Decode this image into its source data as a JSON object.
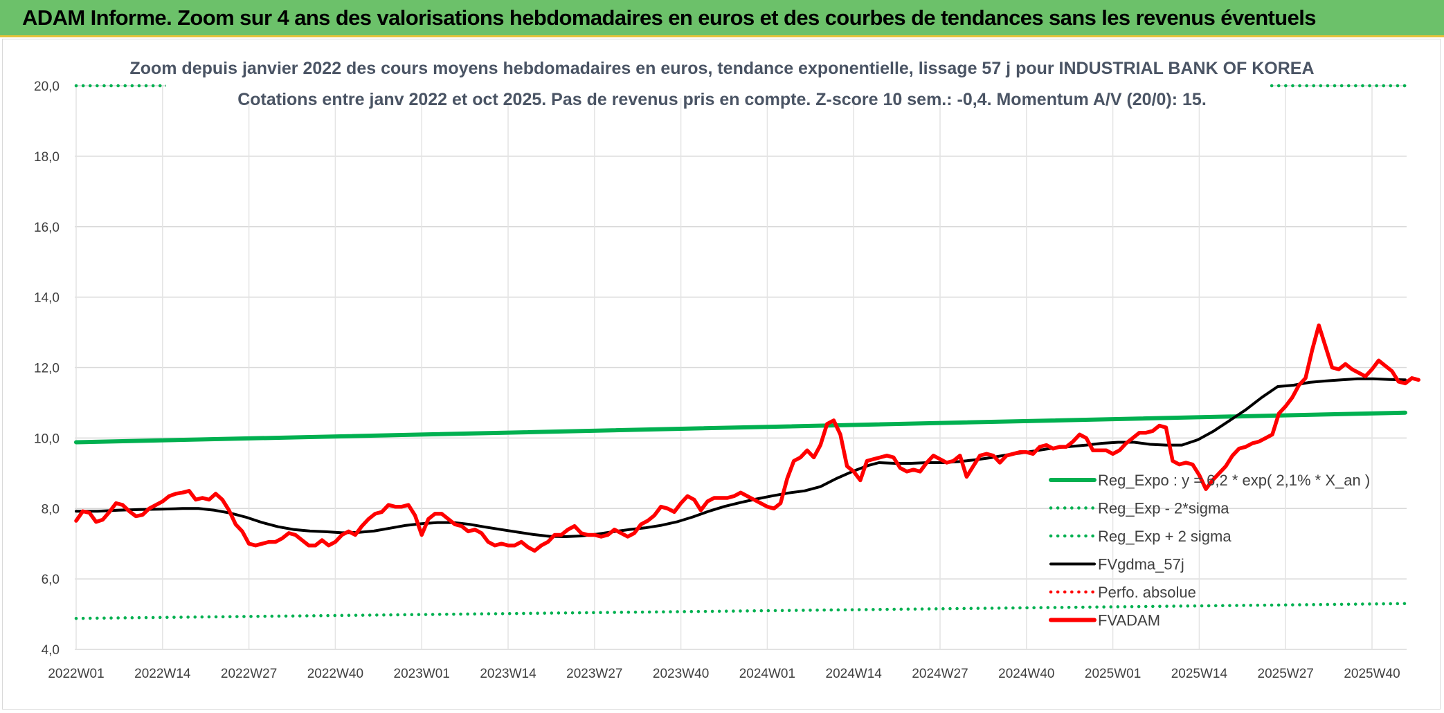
{
  "header": {
    "title": "ADAM Informe. Zoom sur 4 ans des valorisations hebdomadaires en euros et des courbes de tendances sans les revenus éventuels"
  },
  "chart_data": {
    "type": "line",
    "title": "Zoom depuis janvier 2022 des cours moyens hebdomadaires en euros, tendance exponentielle, lissage 57 j pour INDUSTRIAL BANK OF KOREA",
    "subtitle": "Cotations entre janv 2022 et oct 2025. Pas de revenus pris en compte. Z-score 10 sem.: -0,4. Momentum A/V (20/0): 15.",
    "xlabel": "",
    "ylabel": "",
    "ylim": [
      4,
      20
    ],
    "yticks": [
      "4,0",
      "6,0",
      "8,0",
      "10,0",
      "12,0",
      "14,0",
      "16,0",
      "18,0",
      "20,0"
    ],
    "xticks": [
      "2022W01",
      "2022W14",
      "2022W27",
      "2022W40",
      "2023W01",
      "2023W14",
      "2023W27",
      "2023W40",
      "2024W01",
      "2024W14",
      "2024W27",
      "2024W40",
      "2025W01",
      "2025W14",
      "2025W27",
      "2025W40"
    ],
    "grid": true,
    "legend_position": "bottom-right",
    "x_index_range": [
      0,
      200
    ],
    "x_index_step_per_tick": 13,
    "series": [
      {
        "name": "Reg_Expo : y = 6,2 * exp( 2,1% *  X_an )",
        "color": "#00b050",
        "style": "solid",
        "points": [
          [
            0,
            9.88
          ],
          [
            200,
            10.72
          ]
        ]
      },
      {
        "name": "Reg_Exp - 2*sigma",
        "color": "#00b050",
        "style": "dotted",
        "points": [
          [
            0,
            4.88
          ],
          [
            200,
            5.3
          ]
        ]
      },
      {
        "name": "Reg_Exp + 2 sigma",
        "color": "#00b050",
        "style": "dotted",
        "points": [
          [
            0,
            20.0
          ],
          [
            200,
            20.0
          ]
        ]
      },
      {
        "name": "FVgdma_57j",
        "color": "#000000",
        "style": "solid",
        "points": [
          [
            0,
            7.92
          ],
          [
            4,
            7.92
          ],
          [
            8,
            7.95
          ],
          [
            12,
            7.97
          ],
          [
            16,
            7.98
          ],
          [
            20,
            8.0
          ],
          [
            23,
            8.0
          ],
          [
            26,
            7.95
          ],
          [
            29,
            7.87
          ],
          [
            32,
            7.75
          ],
          [
            35,
            7.6
          ],
          [
            38,
            7.48
          ],
          [
            41,
            7.4
          ],
          [
            44,
            7.36
          ],
          [
            47,
            7.34
          ],
          [
            50,
            7.31
          ],
          [
            53,
            7.32
          ],
          [
            56,
            7.36
          ],
          [
            59,
            7.44
          ],
          [
            62,
            7.52
          ],
          [
            65,
            7.57
          ],
          [
            68,
            7.6
          ],
          [
            71,
            7.6
          ],
          [
            74,
            7.55
          ],
          [
            77,
            7.47
          ],
          [
            80,
            7.4
          ],
          [
            83,
            7.33
          ],
          [
            86,
            7.26
          ],
          [
            89,
            7.21
          ],
          [
            92,
            7.2
          ],
          [
            95,
            7.22
          ],
          [
            98,
            7.27
          ],
          [
            101,
            7.34
          ],
          [
            104,
            7.4
          ],
          [
            107,
            7.45
          ],
          [
            110,
            7.52
          ],
          [
            113,
            7.62
          ],
          [
            116,
            7.76
          ],
          [
            119,
            7.92
          ],
          [
            122,
            8.06
          ],
          [
            125,
            8.17
          ],
          [
            128,
            8.27
          ],
          [
            131,
            8.36
          ],
          [
            134,
            8.44
          ],
          [
            137,
            8.5
          ],
          [
            140,
            8.62
          ],
          [
            143,
            8.85
          ],
          [
            146,
            9.05
          ],
          [
            149,
            9.22
          ],
          [
            151,
            9.3
          ],
          [
            154,
            9.28
          ],
          [
            157,
            9.28
          ],
          [
            160,
            9.3
          ],
          [
            163,
            9.3
          ],
          [
            166,
            9.33
          ],
          [
            169,
            9.38
          ],
          [
            172,
            9.44
          ],
          [
            175,
            9.52
          ],
          [
            178,
            9.58
          ],
          [
            181,
            9.65
          ],
          [
            184,
            9.72
          ],
          [
            187,
            9.76
          ],
          [
            190,
            9.8
          ],
          [
            193,
            9.85
          ],
          [
            196,
            9.88
          ],
          [
            199,
            9.88
          ],
          [
            202,
            9.82
          ],
          [
            205,
            9.8
          ],
          [
            208,
            9.8
          ],
          [
            211,
            9.95
          ],
          [
            214,
            10.2
          ],
          [
            217,
            10.5
          ],
          [
            220,
            10.8
          ],
          [
            223,
            11.15
          ],
          [
            226,
            11.46
          ],
          [
            229,
            11.5
          ],
          [
            232,
            11.58
          ],
          [
            235,
            11.62
          ],
          [
            238,
            11.65
          ],
          [
            241,
            11.68
          ],
          [
            244,
            11.68
          ],
          [
            247,
            11.66
          ],
          [
            250,
            11.65
          ]
        ]
      },
      {
        "name": "Perfo. absolue",
        "color": "#ff0000",
        "style": "dotted",
        "points": []
      },
      {
        "name": "FVADAM",
        "color": "#ff0000",
        "style": "solid",
        "points": [
          [
            0,
            7.65
          ],
          [
            1,
            7.92
          ],
          [
            2,
            7.88
          ],
          [
            3,
            7.62
          ],
          [
            4,
            7.68
          ],
          [
            5,
            7.9
          ],
          [
            6,
            8.15
          ],
          [
            7,
            8.1
          ],
          [
            8,
            7.92
          ],
          [
            9,
            7.78
          ],
          [
            10,
            7.82
          ],
          [
            11,
            8.0
          ],
          [
            12,
            8.1
          ],
          [
            13,
            8.2
          ],
          [
            14,
            8.35
          ],
          [
            15,
            8.42
          ],
          [
            16,
            8.45
          ],
          [
            17,
            8.5
          ],
          [
            18,
            8.25
          ],
          [
            19,
            8.3
          ],
          [
            20,
            8.25
          ],
          [
            21,
            8.42
          ],
          [
            22,
            8.25
          ],
          [
            23,
            7.95
          ],
          [
            24,
            7.55
          ],
          [
            25,
            7.35
          ],
          [
            26,
            7.0
          ],
          [
            27,
            6.95
          ],
          [
            28,
            7.0
          ],
          [
            29,
            7.05
          ],
          [
            30,
            7.05
          ],
          [
            31,
            7.15
          ],
          [
            32,
            7.3
          ],
          [
            33,
            7.25
          ],
          [
            34,
            7.1
          ],
          [
            35,
            6.95
          ],
          [
            36,
            6.95
          ],
          [
            37,
            7.1
          ],
          [
            38,
            6.95
          ],
          [
            39,
            7.05
          ],
          [
            40,
            7.25
          ],
          [
            41,
            7.35
          ],
          [
            42,
            7.25
          ],
          [
            43,
            7.5
          ],
          [
            44,
            7.7
          ],
          [
            45,
            7.85
          ],
          [
            46,
            7.9
          ],
          [
            47,
            8.1
          ],
          [
            48,
            8.05
          ],
          [
            49,
            8.05
          ],
          [
            50,
            8.1
          ],
          [
            51,
            7.8
          ],
          [
            52,
            7.25
          ],
          [
            53,
            7.7
          ],
          [
            54,
            7.85
          ],
          [
            55,
            7.85
          ],
          [
            56,
            7.7
          ],
          [
            57,
            7.55
          ],
          [
            58,
            7.5
          ],
          [
            59,
            7.35
          ],
          [
            60,
            7.4
          ],
          [
            61,
            7.3
          ],
          [
            62,
            7.05
          ],
          [
            63,
            6.95
          ],
          [
            64,
            7.0
          ],
          [
            65,
            6.95
          ],
          [
            66,
            6.95
          ],
          [
            67,
            7.05
          ],
          [
            68,
            6.9
          ],
          [
            69,
            6.8
          ],
          [
            70,
            6.95
          ],
          [
            71,
            7.05
          ],
          [
            72,
            7.25
          ],
          [
            73,
            7.25
          ],
          [
            74,
            7.4
          ],
          [
            75,
            7.5
          ],
          [
            76,
            7.3
          ],
          [
            77,
            7.25
          ],
          [
            78,
            7.25
          ],
          [
            79,
            7.2
          ],
          [
            80,
            7.25
          ],
          [
            81,
            7.4
          ],
          [
            82,
            7.3
          ],
          [
            83,
            7.2
          ],
          [
            84,
            7.3
          ],
          [
            85,
            7.55
          ],
          [
            86,
            7.65
          ],
          [
            87,
            7.8
          ],
          [
            88,
            8.05
          ],
          [
            89,
            8.0
          ],
          [
            90,
            7.9
          ],
          [
            91,
            8.15
          ],
          [
            92,
            8.35
          ],
          [
            93,
            8.25
          ],
          [
            94,
            7.95
          ],
          [
            95,
            8.2
          ],
          [
            96,
            8.3
          ],
          [
            97,
            8.3
          ],
          [
            98,
            8.3
          ],
          [
            99,
            8.35
          ],
          [
            100,
            8.45
          ],
          [
            101,
            8.35
          ],
          [
            102,
            8.25
          ],
          [
            103,
            8.15
          ],
          [
            104,
            8.05
          ],
          [
            105,
            8.0
          ],
          [
            106,
            8.15
          ],
          [
            107,
            8.85
          ],
          [
            108,
            9.35
          ],
          [
            109,
            9.45
          ],
          [
            110,
            9.65
          ],
          [
            111,
            9.45
          ],
          [
            112,
            9.8
          ],
          [
            113,
            10.4
          ],
          [
            114,
            10.5
          ],
          [
            115,
            10.1
          ],
          [
            116,
            9.2
          ],
          [
            117,
            9.05
          ],
          [
            118,
            8.8
          ],
          [
            119,
            9.35
          ],
          [
            120,
            9.4
          ],
          [
            121,
            9.45
          ],
          [
            122,
            9.5
          ],
          [
            123,
            9.45
          ],
          [
            124,
            9.15
          ],
          [
            125,
            9.05
          ],
          [
            126,
            9.1
          ],
          [
            127,
            9.05
          ],
          [
            128,
            9.3
          ],
          [
            129,
            9.5
          ],
          [
            130,
            9.4
          ],
          [
            131,
            9.3
          ],
          [
            132,
            9.35
          ],
          [
            133,
            9.5
          ],
          [
            134,
            8.9
          ],
          [
            135,
            9.2
          ],
          [
            136,
            9.5
          ],
          [
            137,
            9.55
          ],
          [
            138,
            9.5
          ],
          [
            139,
            9.3
          ],
          [
            140,
            9.5
          ],
          [
            141,
            9.55
          ],
          [
            142,
            9.6
          ],
          [
            143,
            9.6
          ],
          [
            144,
            9.55
          ],
          [
            145,
            9.75
          ],
          [
            146,
            9.8
          ],
          [
            147,
            9.7
          ],
          [
            148,
            9.75
          ],
          [
            149,
            9.75
          ],
          [
            150,
            9.9
          ],
          [
            151,
            10.1
          ],
          [
            152,
            10.0
          ],
          [
            153,
            9.65
          ],
          [
            154,
            9.65
          ],
          [
            155,
            9.65
          ],
          [
            156,
            9.55
          ],
          [
            157,
            9.65
          ],
          [
            158,
            9.85
          ],
          [
            159,
            10.0
          ],
          [
            160,
            10.15
          ],
          [
            161,
            10.15
          ],
          [
            162,
            10.2
          ],
          [
            163,
            10.35
          ],
          [
            164,
            10.3
          ],
          [
            165,
            9.35
          ],
          [
            166,
            9.25
          ],
          [
            167,
            9.3
          ],
          [
            168,
            9.25
          ],
          [
            169,
            8.95
          ],
          [
            170,
            8.55
          ],
          [
            171,
            8.8
          ],
          [
            172,
            9.0
          ],
          [
            173,
            9.2
          ],
          [
            174,
            9.5
          ],
          [
            175,
            9.7
          ],
          [
            176,
            9.75
          ],
          [
            177,
            9.85
          ],
          [
            178,
            9.9
          ],
          [
            179,
            10.0
          ],
          [
            180,
            10.1
          ],
          [
            181,
            10.7
          ],
          [
            182,
            10.9
          ],
          [
            183,
            11.15
          ],
          [
            184,
            11.5
          ],
          [
            185,
            11.7
          ],
          [
            186,
            12.5
          ],
          [
            187,
            13.2
          ],
          [
            188,
            12.6
          ],
          [
            189,
            12.0
          ],
          [
            190,
            11.95
          ],
          [
            191,
            12.1
          ],
          [
            192,
            11.95
          ],
          [
            193,
            11.85
          ],
          [
            194,
            11.75
          ],
          [
            195,
            11.95
          ],
          [
            196,
            12.2
          ],
          [
            197,
            12.05
          ],
          [
            198,
            11.9
          ],
          [
            199,
            11.6
          ],
          [
            200,
            11.55
          ],
          [
            201,
            11.7
          ],
          [
            202,
            11.65
          ]
        ]
      }
    ]
  }
}
